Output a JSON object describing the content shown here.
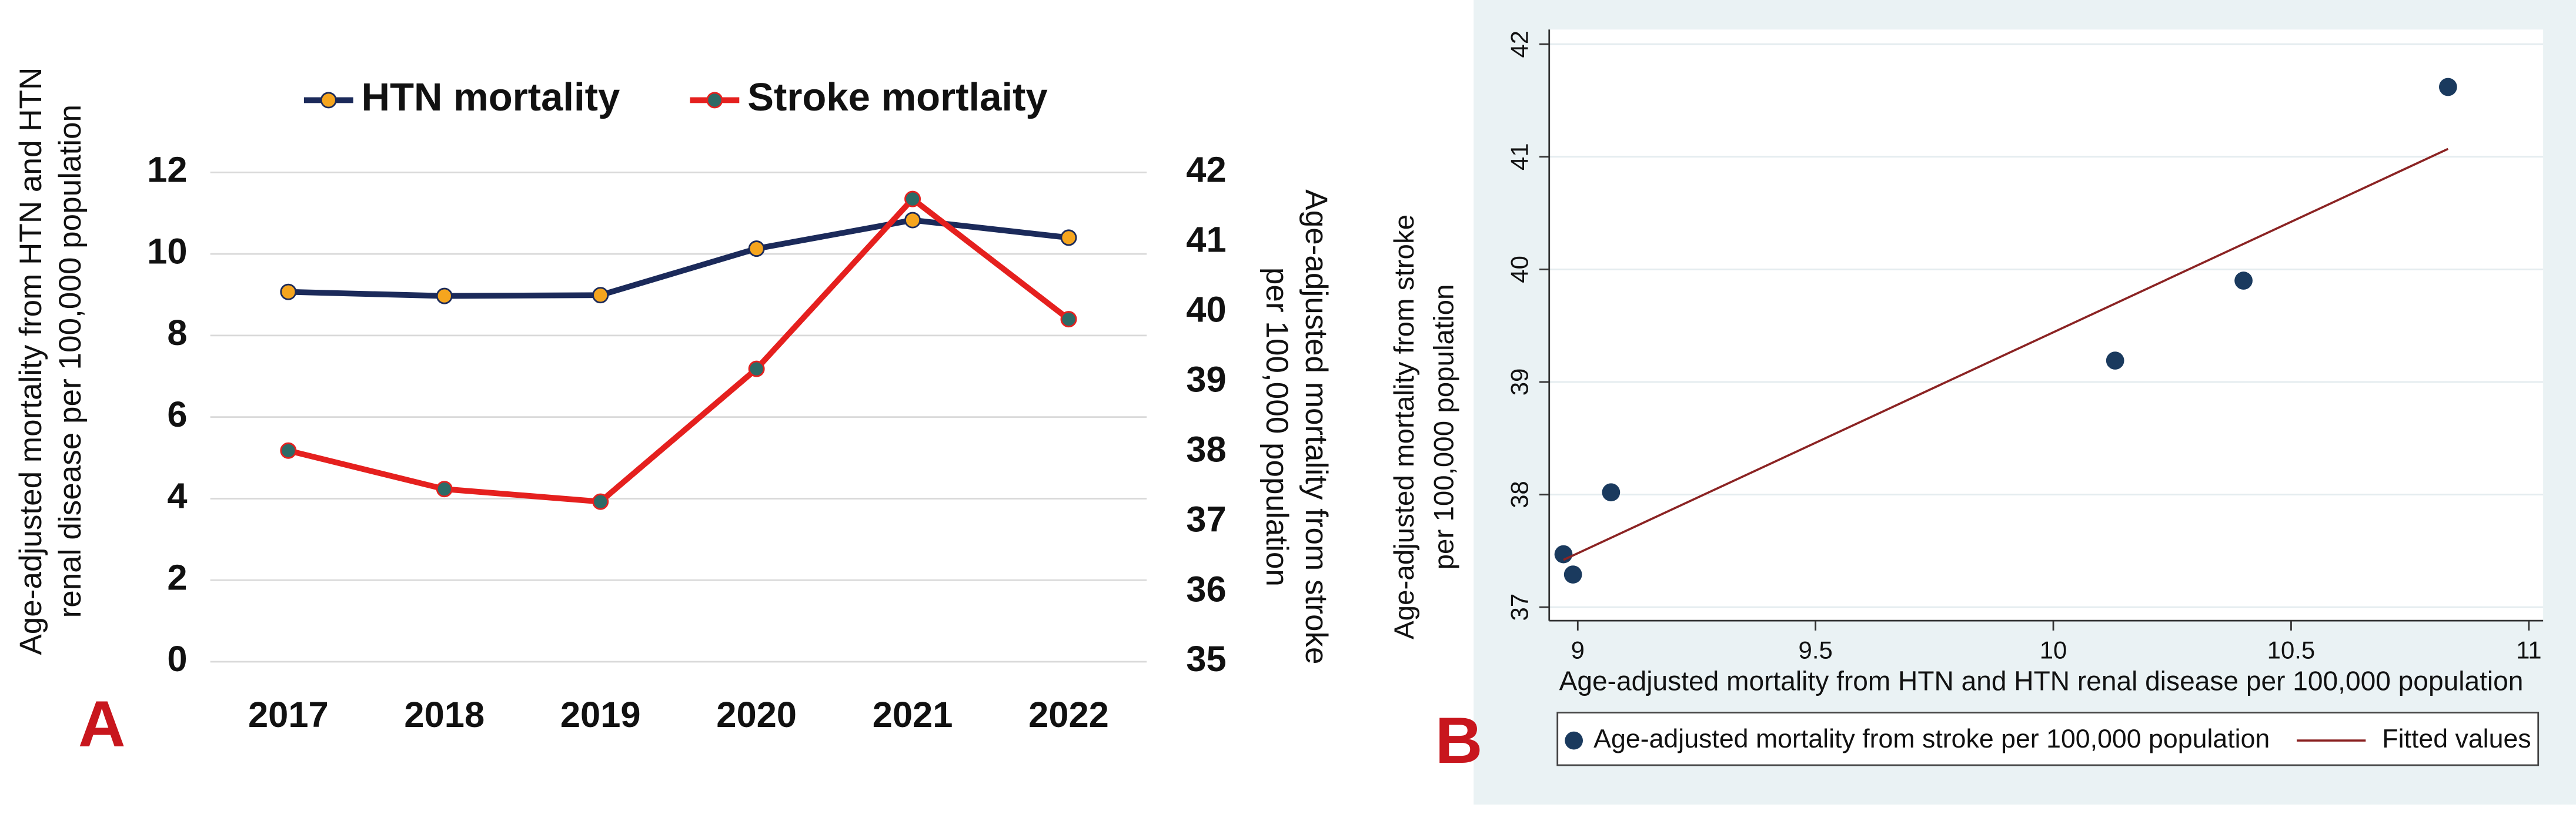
{
  "chart_data": [
    {
      "type": "line",
      "panel_label": "A",
      "categories": [
        "2017",
        "2018",
        "2019",
        "2020",
        "2021",
        "2022"
      ],
      "series": [
        {
          "name": "HTN mortality",
          "color": "#1b2a5a",
          "marker_color": "#f5a51e",
          "values": [
            9.07,
            8.97,
            8.99,
            10.13,
            10.83,
            10.4
          ]
        },
        {
          "name": "Stroke mortlaity",
          "color": "#e5201e",
          "marker_color": "#2d6a66",
          "axis": "y2",
          "values": [
            38.02,
            37.47,
            37.29,
            39.19,
            41.62,
            39.9
          ]
        }
      ],
      "ylabel": [
        "Age-adjusted mortality from HTN and HTN",
        "renal disease per 100,000 population"
      ],
      "y2label": [
        "Age-adjusted mortality from stroke",
        "per 100,000 population"
      ],
      "ylim": [
        0,
        12
      ],
      "yticks": [
        0,
        2,
        4,
        6,
        8,
        10,
        12
      ],
      "y2lim": [
        35,
        42
      ],
      "y2ticks": [
        35,
        36,
        37,
        38,
        39,
        40,
        41,
        42
      ],
      "grid": true,
      "legend": "top"
    },
    {
      "type": "scatter",
      "panel_label": "B",
      "series": [
        {
          "name": "Age-adjusted mortality from stroke per 100,000 population",
          "color": "#1a3a5e",
          "x": [
            9.07,
            8.97,
            8.99,
            10.13,
            10.83,
            10.4
          ],
          "values": [
            38.02,
            37.47,
            37.29,
            39.19,
            41.62,
            39.9
          ]
        },
        {
          "name": "Fitted values",
          "type": "line",
          "color": "#8b2323",
          "x": [
            8.97,
            10.83
          ],
          "values": [
            37.42,
            41.07
          ]
        }
      ],
      "xlabel": "Age-adjusted mortality from HTN and HTN renal disease per 100,000 population",
      "ylabel": [
        "Age-adjusted mortality from stroke",
        "per 100,000 population"
      ],
      "xlim": [
        8.94,
        11.03
      ],
      "xticks": [
        9,
        9.5,
        10,
        10.5,
        11
      ],
      "ylim": [
        36.88,
        42.13
      ],
      "yticks": [
        37,
        38,
        39,
        40,
        41,
        42
      ],
      "grid": true,
      "legend": "bottom"
    }
  ]
}
